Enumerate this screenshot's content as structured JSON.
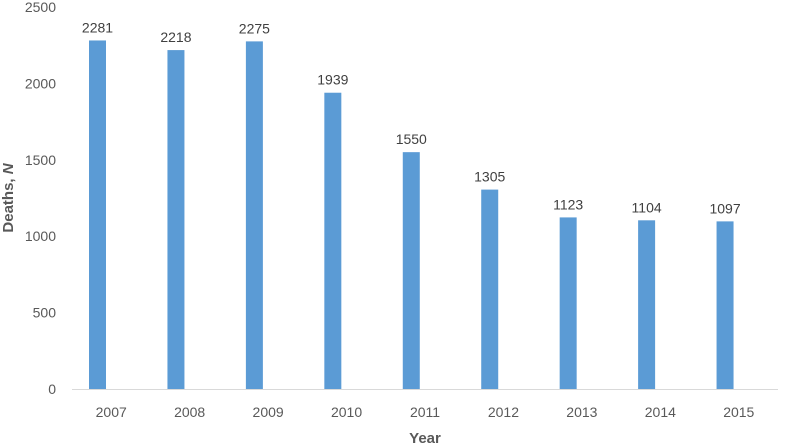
{
  "colors": {
    "bar": "#5B9BD5",
    "axis": "#D9D9D9"
  },
  "chart_data": {
    "type": "bar",
    "categories": [
      "2007",
      "2008",
      "2009",
      "2010",
      "2011",
      "2012",
      "2013",
      "2014",
      "2015"
    ],
    "values": [
      2281,
      2218,
      2275,
      1939,
      1550,
      1305,
      1123,
      1104,
      1097
    ],
    "title": "",
    "xlabel": "Year",
    "ylabel": "Deaths, N",
    "ylabel_parts": {
      "text": "Deaths, ",
      "italic": "N"
    },
    "ylim": [
      0,
      2500
    ],
    "yticks": [
      0,
      500,
      1000,
      1500,
      2000,
      2500
    ],
    "grid": false,
    "data_labels": true
  }
}
